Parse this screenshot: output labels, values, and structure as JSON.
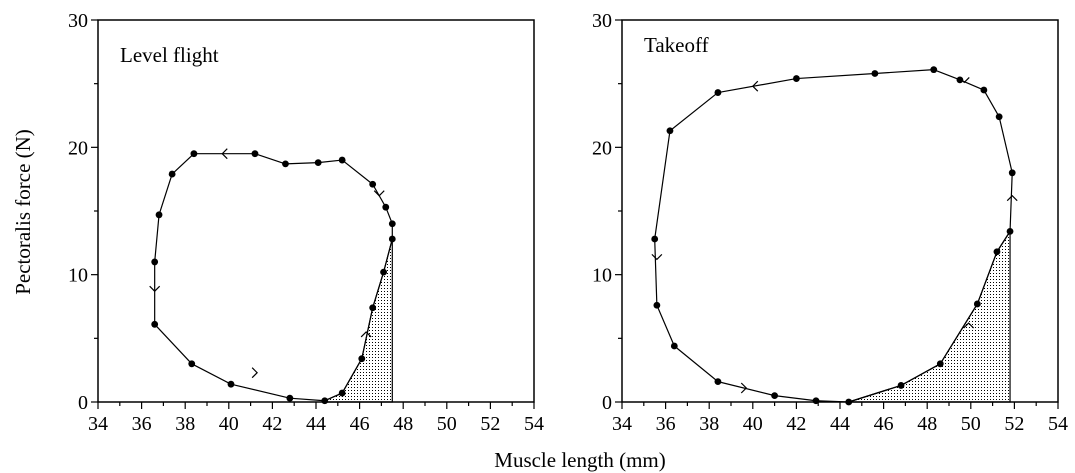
{
  "chart_data": [
    {
      "type": "line",
      "title": "Level flight",
      "xlabel": "Muscle length (mm)",
      "ylabel": "Pectoralis force  (N)",
      "xlim": [
        34,
        54
      ],
      "ylim": [
        0,
        30
      ],
      "xticks": [
        "34",
        "36",
        "38",
        "40",
        "42",
        "44",
        "46",
        "48",
        "50",
        "52",
        "54"
      ],
      "yticks": [
        "0",
        "10",
        "20",
        "30"
      ],
      "grid": false,
      "series": [
        {
          "x": [
            47.5,
            47.2,
            46.6,
            45.2,
            44.1,
            42.6,
            41.2,
            38.4,
            37.4,
            36.8,
            36.6,
            36.6,
            38.3,
            40.1,
            42.8,
            44.4,
            45.2,
            46.1,
            46.6,
            47.1,
            47.5
          ],
          "y": [
            14.0,
            15.3,
            17.1,
            19.0,
            18.8,
            18.7,
            19.5,
            19.5,
            17.9,
            14.7,
            11.0,
            6.1,
            3.0,
            1.4,
            0.3,
            0.1,
            0.7,
            3.4,
            7.4,
            10.2,
            12.8
          ]
        }
      ],
      "arrows": [
        {
          "x": 39.7,
          "y": 19.5,
          "dir": "left"
        },
        {
          "x": 36.6,
          "y": 8.7,
          "dir": "down"
        },
        {
          "x": 41.3,
          "y": 2.3,
          "dir": "right"
        },
        {
          "x": 46.3,
          "y": 5.5,
          "dir": "up"
        },
        {
          "x": 46.9,
          "y": 16.2,
          "dir": "down"
        }
      ],
      "shaded_region": {
        "x_from": 44.4,
        "x_to": 47.5,
        "y_top": 12.8
      }
    },
    {
      "type": "line",
      "title": "Takeoff",
      "xlabel": "Muscle length (mm)",
      "ylabel": "",
      "xlim": [
        34,
        54
      ],
      "ylim": [
        0,
        30
      ],
      "xticks": [
        "34",
        "36",
        "38",
        "40",
        "42",
        "44",
        "46",
        "48",
        "50",
        "52",
        "54"
      ],
      "yticks": [
        "0",
        "10",
        "20",
        "30"
      ],
      "grid": false,
      "series": [
        {
          "x": [
            51.9,
            51.3,
            50.6,
            49.5,
            48.3,
            45.6,
            42.0,
            38.4,
            36.2,
            35.5,
            35.6,
            36.4,
            38.4,
            41.0,
            42.9,
            44.4,
            46.8,
            48.6,
            50.3,
            51.2,
            51.8
          ],
          "y": [
            18.0,
            22.4,
            24.5,
            25.3,
            26.1,
            25.8,
            25.4,
            24.3,
            21.3,
            12.8,
            7.6,
            4.4,
            1.6,
            0.5,
            0.1,
            0.0,
            1.3,
            3.0,
            7.7,
            11.8,
            13.4
          ]
        }
      ],
      "arrows": [
        {
          "x": 40.0,
          "y": 24.8,
          "dir": "left"
        },
        {
          "x": 35.6,
          "y": 11.2,
          "dir": "down"
        },
        {
          "x": 39.7,
          "y": 1.1,
          "dir": "right"
        },
        {
          "x": 49.9,
          "y": 6.2,
          "dir": "up"
        },
        {
          "x": 51.9,
          "y": 16.2,
          "dir": "up"
        },
        {
          "x": 49.7,
          "y": 25.1,
          "dir": "down"
        }
      ],
      "shaded_region": {
        "x_from": 44.4,
        "x_to": 51.8,
        "y_top": 13.4
      }
    }
  ]
}
